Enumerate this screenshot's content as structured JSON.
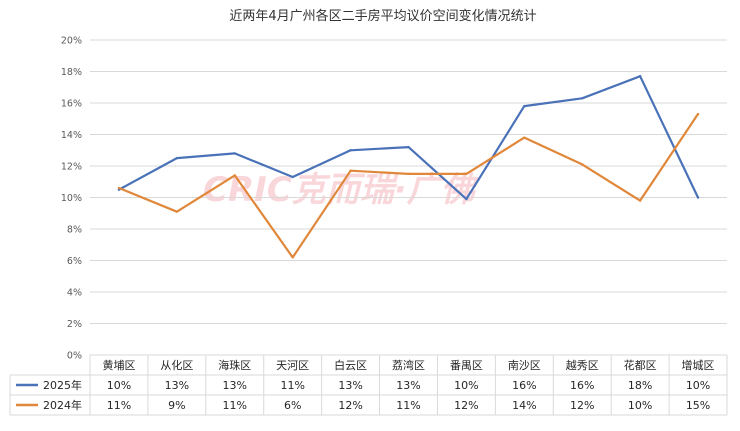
{
  "chart_data": {
    "type": "line",
    "title": "近两年4月广州各区二手房平均议价空间变化情况统计",
    "categories": [
      "黄埔区",
      "从化区",
      "海珠区",
      "天河区",
      "白云区",
      "荔湾区",
      "番禺区",
      "南沙区",
      "越秀区",
      "花都区",
      "增城区"
    ],
    "ylim": [
      0,
      20
    ],
    "yticks": [
      "0%",
      "2%",
      "4%",
      "6%",
      "8%",
      "10%",
      "12%",
      "14%",
      "16%",
      "18%",
      "20%"
    ],
    "grid": true,
    "legend": "table-left",
    "series": [
      {
        "name": "2025年",
        "color": "#4a72b8",
        "values": [
          10.5,
          12.5,
          12.8,
          11.3,
          13.0,
          13.2,
          9.9,
          15.8,
          16.3,
          17.7,
          10.0
        ],
        "table_labels": [
          "10%",
          "13%",
          "13%",
          "11%",
          "13%",
          "13%",
          "10%",
          "16%",
          "16%",
          "18%",
          "10%"
        ]
      },
      {
        "name": "2024年",
        "color": "#e0873a",
        "values": [
          10.6,
          9.1,
          11.4,
          6.2,
          11.7,
          11.5,
          11.5,
          13.8,
          12.1,
          9.8,
          15.3
        ],
        "table_labels": [
          "11%",
          "9%",
          "11%",
          "6%",
          "12%",
          "11%",
          "12%",
          "14%",
          "12%",
          "10%",
          "15%"
        ]
      }
    ],
    "watermark": "CRIC克而瑞·广佛"
  }
}
